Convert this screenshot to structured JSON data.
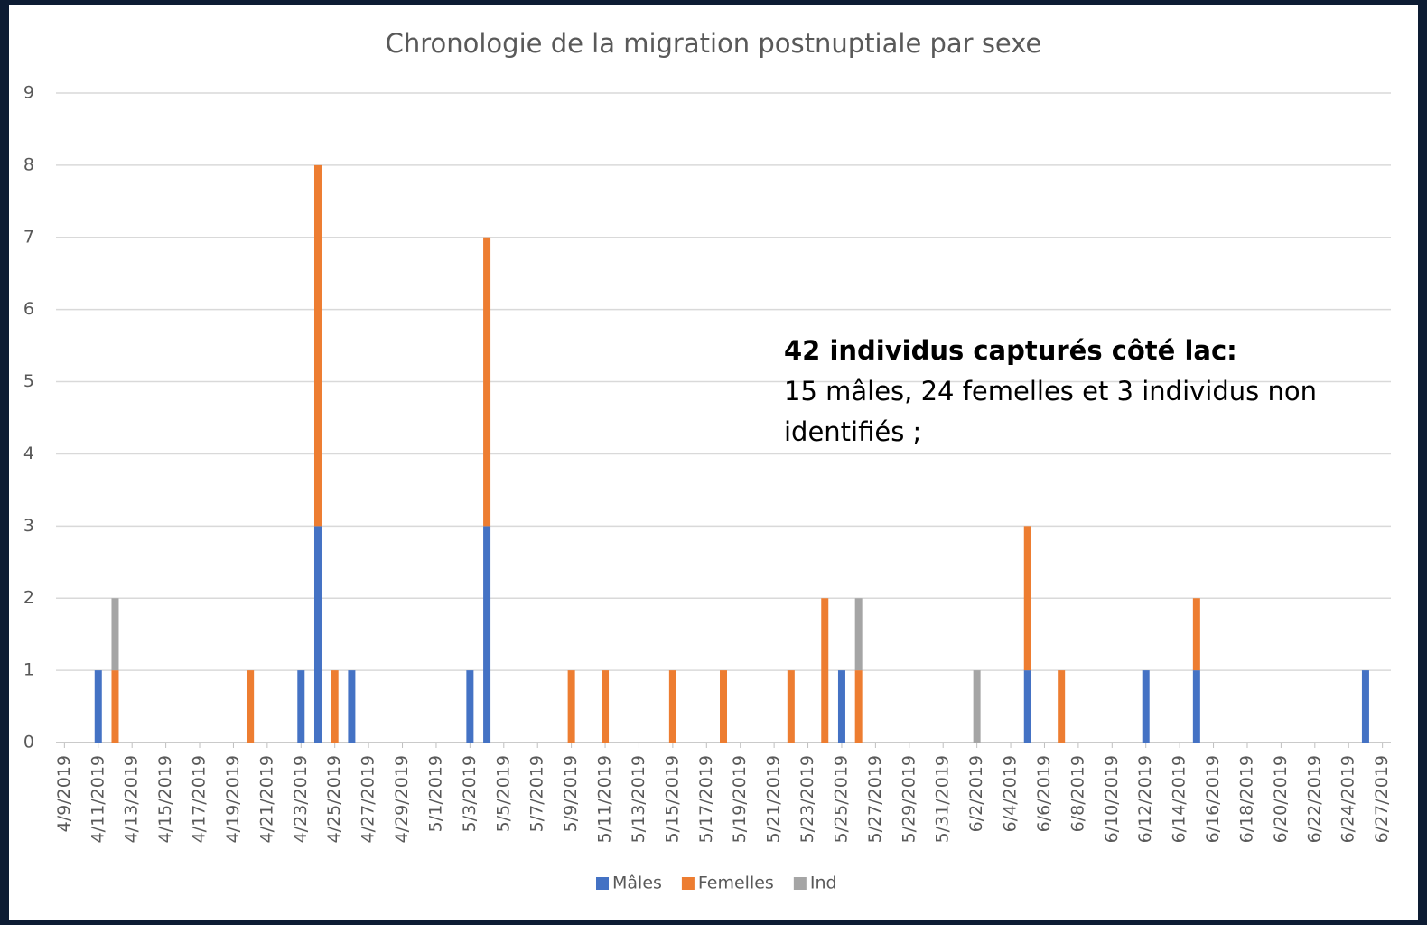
{
  "chart_data": {
    "type": "stacked_bar",
    "title": "Chronologie de la migration postnuptiale par sexe",
    "annotation": {
      "heading": "42 individus capturés côté lac:",
      "text": "15 mâles, 24 femelles et 3 individus non identifiés ;"
    },
    "categories": [
      "4/9/2019",
      null,
      "4/11/2019",
      null,
      "4/13/2019",
      null,
      "4/15/2019",
      null,
      "4/17/2019",
      null,
      "4/19/2019",
      null,
      "4/21/2019",
      null,
      "4/23/2019",
      null,
      "4/25/2019",
      null,
      "4/27/2019",
      null,
      "4/29/2019",
      null,
      "5/1/2019",
      null,
      "5/3/2019",
      null,
      "5/5/2019",
      null,
      "5/7/2019",
      null,
      "5/9/2019",
      null,
      "5/11/2019",
      null,
      "5/13/2019",
      null,
      "5/15/2019",
      null,
      "5/17/2019",
      null,
      "5/19/2019",
      null,
      "5/21/2019",
      null,
      "5/23/2019",
      null,
      "5/25/2019",
      null,
      "5/27/2019",
      null,
      "5/29/2019",
      null,
      "5/31/2019",
      null,
      "6/2/2019",
      null,
      "6/4/2019",
      null,
      "6/6/2019",
      null,
      "6/8/2019",
      null,
      "6/10/2019",
      null,
      "6/12/2019",
      null,
      "6/14/2019",
      null,
      "6/16/2019",
      null,
      "6/18/2019",
      null,
      "6/20/2019",
      null,
      "6/22/2019",
      null,
      "6/24/2019",
      null,
      "6/27/2019"
    ],
    "series": [
      {
        "name": "Mâles",
        "color": "#4472c4",
        "values": [
          0,
          0,
          1,
          0,
          0,
          0,
          0,
          0,
          0,
          0,
          0,
          0,
          0,
          0,
          1,
          3,
          0,
          1,
          0,
          0,
          0,
          0,
          0,
          0,
          1,
          3,
          0,
          0,
          0,
          0,
          0,
          0,
          0,
          0,
          0,
          0,
          0,
          0,
          0,
          0,
          0,
          0,
          0,
          0,
          0,
          0,
          1,
          0,
          0,
          0,
          0,
          0,
          0,
          0,
          0,
          0,
          0,
          1,
          0,
          0,
          0,
          0,
          0,
          0,
          1,
          0,
          0,
          1,
          0,
          0,
          0,
          0,
          0,
          0,
          0,
          0,
          0,
          1,
          0
        ]
      },
      {
        "name": "Femelles",
        "color": "#ed7d31",
        "values": [
          0,
          0,
          0,
          1,
          0,
          0,
          0,
          0,
          0,
          0,
          0,
          1,
          0,
          0,
          0,
          5,
          1,
          0,
          0,
          0,
          0,
          0,
          0,
          0,
          0,
          4,
          0,
          0,
          0,
          0,
          1,
          0,
          1,
          0,
          0,
          0,
          1,
          0,
          0,
          1,
          0,
          0,
          0,
          1,
          0,
          2,
          0,
          1,
          0,
          0,
          0,
          0,
          0,
          0,
          0,
          0,
          0,
          2,
          0,
          1,
          0,
          0,
          0,
          0,
          0,
          0,
          0,
          1,
          0,
          0,
          0,
          0,
          0,
          0,
          0,
          0,
          0,
          0,
          0
        ]
      },
      {
        "name": "Ind",
        "color": "#a5a5a5",
        "values": [
          0,
          0,
          0,
          1,
          0,
          0,
          0,
          0,
          0,
          0,
          0,
          0,
          0,
          0,
          0,
          0,
          0,
          0,
          0,
          0,
          0,
          0,
          0,
          0,
          0,
          0,
          0,
          0,
          0,
          0,
          0,
          0,
          0,
          0,
          0,
          0,
          0,
          0,
          0,
          0,
          0,
          0,
          0,
          0,
          0,
          0,
          0,
          1,
          0,
          0,
          0,
          0,
          0,
          0,
          1,
          0,
          0,
          0,
          0,
          0,
          0,
          0,
          0,
          0,
          0,
          0,
          0,
          0,
          0,
          0,
          0,
          0,
          0,
          0,
          0,
          0,
          0,
          0,
          0
        ]
      }
    ],
    "ylim": [
      0,
      9
    ],
    "yticks": [
      0,
      1,
      2,
      3,
      4,
      5,
      6,
      7,
      8,
      9
    ],
    "grid": true,
    "legend": "bottom"
  }
}
